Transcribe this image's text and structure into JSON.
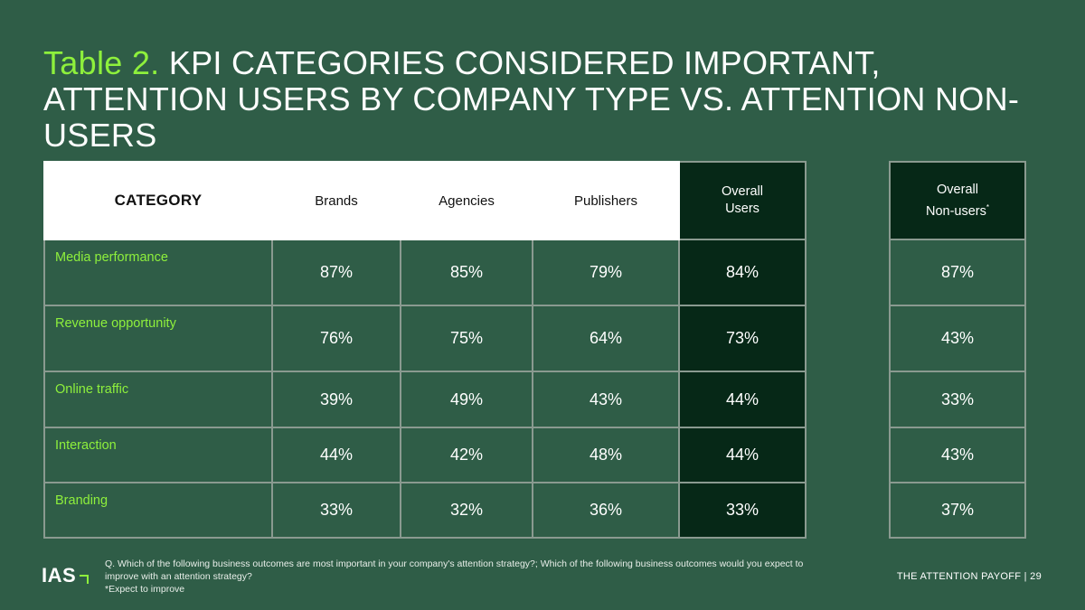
{
  "title": {
    "lead": "Table 2.",
    "text": "KPI CATEGORIES CONSIDERED IMPORTANT, ATTENTION USERS BY COMPANY TYPE VS. ATTENTION NON-USERS"
  },
  "main_table": {
    "headers": {
      "category": "CATEGORY",
      "brands": "Brands",
      "agencies": "Agencies",
      "publishers": "Publishers",
      "overall_users_line1": "Overall",
      "overall_users_line2": "Users"
    },
    "rows": [
      {
        "category": "Media performance",
        "brands": "87%",
        "agencies": "85%",
        "publishers": "79%",
        "overall_users": "84%"
      },
      {
        "category": "Revenue opportunity",
        "brands": "76%",
        "agencies": "75%",
        "publishers": "64%",
        "overall_users": "73%"
      },
      {
        "category": "Online traffic",
        "brands": "39%",
        "agencies": "49%",
        "publishers": "43%",
        "overall_users": "44%"
      },
      {
        "category": "Interaction",
        "brands": "44%",
        "agencies": "42%",
        "publishers": "48%",
        "overall_users": "44%"
      },
      {
        "category": "Branding",
        "brands": "33%",
        "agencies": "32%",
        "publishers": "36%",
        "overall_users": "33%"
      }
    ]
  },
  "side_table": {
    "header_line1": "Overall",
    "header_line2": "Non-users",
    "header_mark": "*",
    "values": [
      "87%",
      "43%",
      "33%",
      "43%",
      "37%"
    ]
  },
  "footer": {
    "logo": "IAS",
    "question": "Q. Which of the following business outcomes are most important in your company's attention strategy?; Which of the following business outcomes would you expect to improve with an attention strategy?",
    "note": "*Expect to improve",
    "report": "THE ATTENTION PAYOFF",
    "page": "| 29"
  },
  "colors": {
    "background": "#2f5d47",
    "accent": "#8ef03c",
    "dark_cell": "#062817"
  }
}
